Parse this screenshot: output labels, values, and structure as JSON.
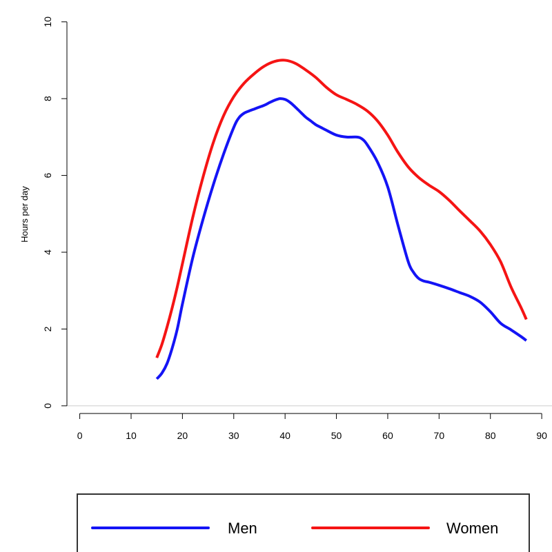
{
  "chart_data": {
    "type": "line",
    "title": "",
    "xlabel": "",
    "ylabel": "Hours per day",
    "xlim": [
      -2.5,
      92
    ],
    "ylim": [
      -0.2,
      10.3
    ],
    "xticks": [
      0,
      10,
      20,
      30,
      40,
      50,
      60,
      70,
      80,
      90
    ],
    "yticks": [
      0,
      2,
      4,
      6,
      8,
      10
    ],
    "grid": false,
    "reference_line": {
      "y": 0,
      "color": "#cccccc"
    },
    "legend_position": "bottom",
    "series": [
      {
        "name": "Men",
        "color": "#1414f5",
        "x": [
          15,
          16,
          17,
          18,
          19,
          20,
          22,
          24,
          26,
          28,
          30,
          31,
          32,
          33,
          34,
          35,
          36,
          37,
          38,
          39,
          40,
          41,
          42,
          43,
          44,
          45,
          46,
          47,
          48,
          50,
          52,
          54,
          55,
          56,
          58,
          60,
          62,
          64,
          65,
          66,
          67,
          68,
          70,
          72,
          74,
          76,
          78,
          80,
          82,
          84,
          86,
          87
        ],
        "y": [
          0.7,
          0.85,
          1.1,
          1.5,
          2.0,
          2.65,
          3.85,
          4.85,
          5.75,
          6.55,
          7.25,
          7.5,
          7.62,
          7.68,
          7.73,
          7.78,
          7.83,
          7.9,
          7.96,
          8.0,
          7.98,
          7.9,
          7.78,
          7.65,
          7.52,
          7.42,
          7.32,
          7.25,
          7.18,
          7.05,
          7.0,
          7.0,
          6.95,
          6.8,
          6.35,
          5.7,
          4.7,
          3.75,
          3.48,
          3.32,
          3.25,
          3.22,
          3.14,
          3.05,
          2.95,
          2.85,
          2.7,
          2.45,
          2.15,
          1.98,
          1.8,
          1.7
        ]
      },
      {
        "name": "Women",
        "color": "#f51414",
        "x": [
          15,
          16,
          17,
          18,
          19,
          20,
          22,
          24,
          26,
          28,
          30,
          32,
          34,
          36,
          38,
          40,
          42,
          44,
          46,
          48,
          50,
          52,
          54,
          56,
          58,
          60,
          62,
          64,
          66,
          68,
          70,
          72,
          74,
          76,
          78,
          80,
          82,
          84,
          86,
          87
        ],
        "y": [
          1.25,
          1.6,
          2.05,
          2.55,
          3.1,
          3.7,
          4.9,
          5.95,
          6.85,
          7.55,
          8.05,
          8.4,
          8.65,
          8.85,
          8.97,
          9.0,
          8.92,
          8.75,
          8.55,
          8.3,
          8.1,
          7.98,
          7.85,
          7.68,
          7.42,
          7.05,
          6.6,
          6.22,
          5.95,
          5.75,
          5.58,
          5.35,
          5.08,
          4.82,
          4.55,
          4.2,
          3.75,
          3.1,
          2.55,
          2.25
        ]
      }
    ]
  }
}
